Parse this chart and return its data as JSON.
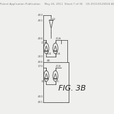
{
  "bg_color": "#efefed",
  "header_color": "#888888",
  "line_color": "#444444",
  "label_color": "#666666",
  "header_fontsize": 2.8,
  "fig_label_fontsize": 8.0,
  "label_fontsize": 3.2,
  "fig_label": "FIG. 3B",
  "header_text": "Patent Application Publication     May 26, 2011  Sheet 7 of 36    US 2011/0126924 A1"
}
